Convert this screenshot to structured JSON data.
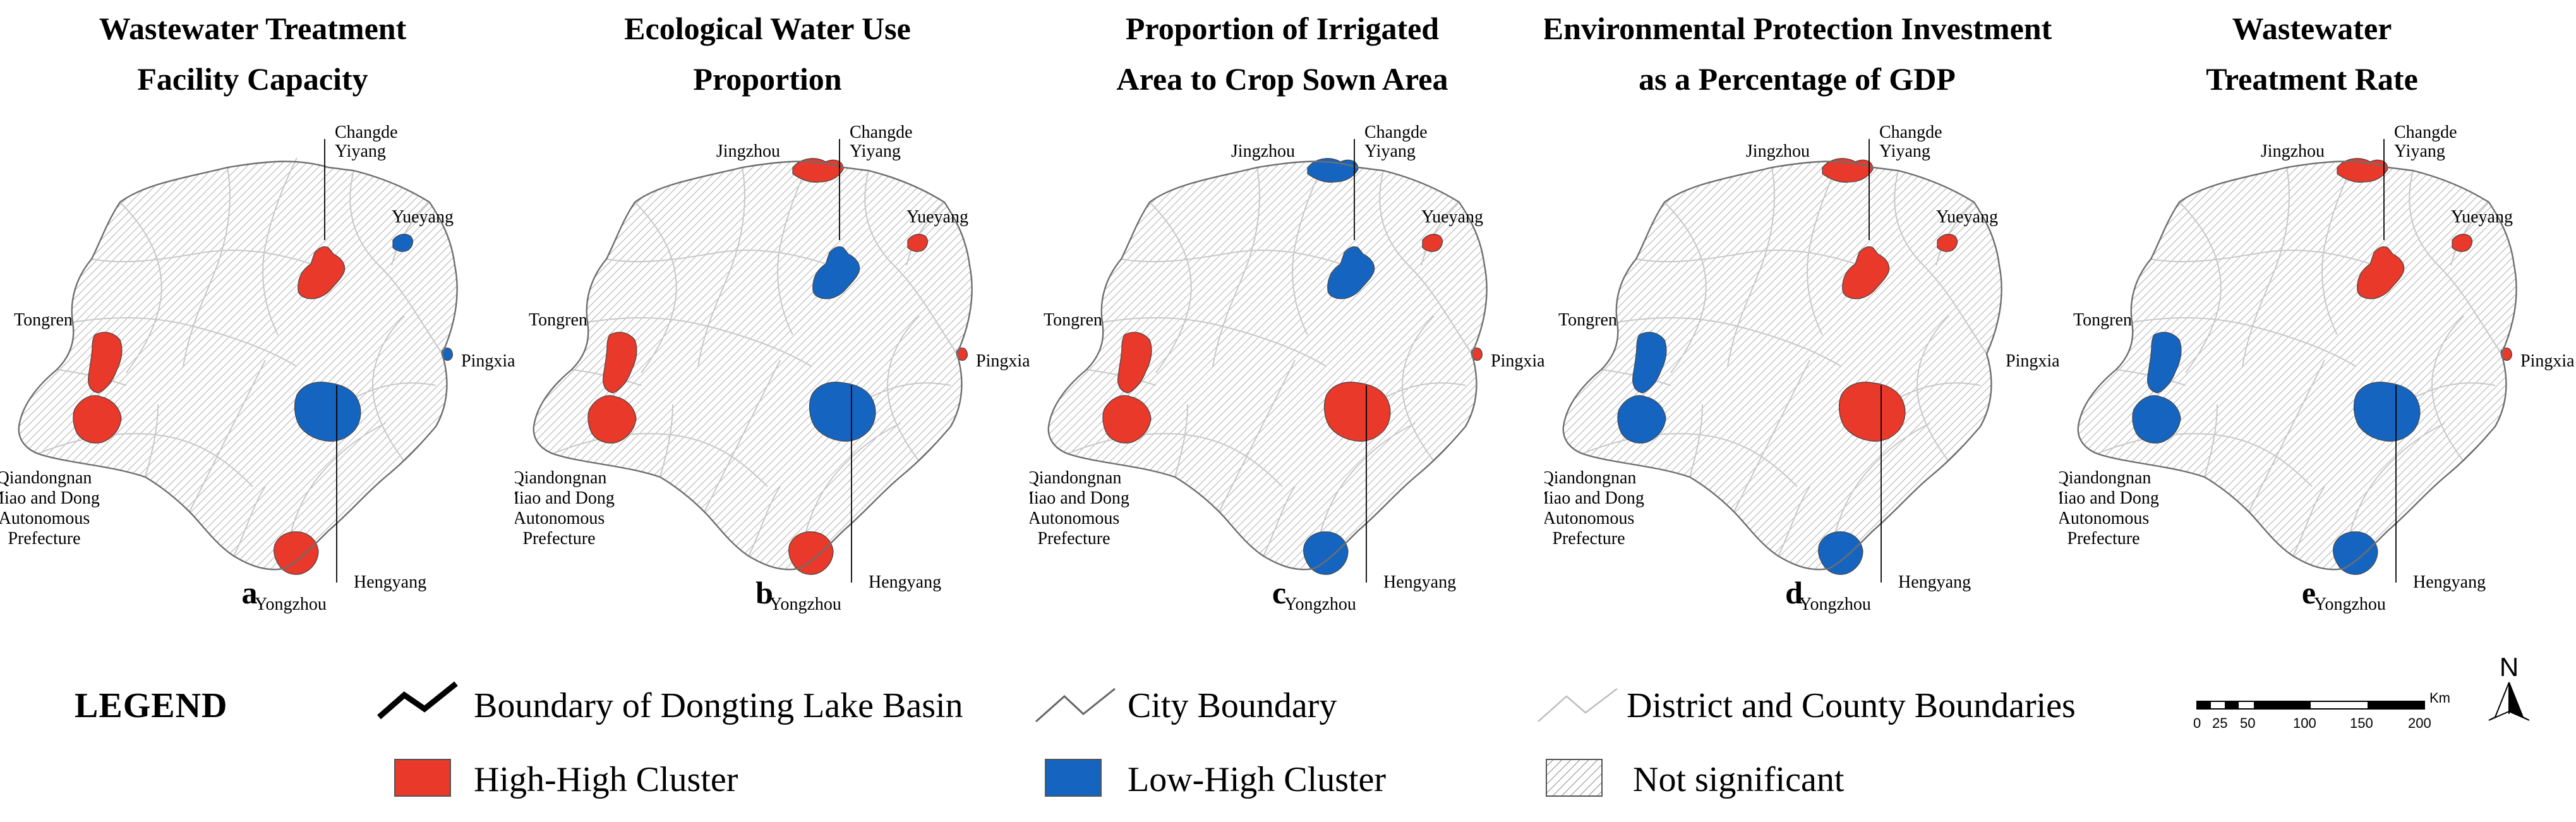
{
  "panels": [
    {
      "id": "a",
      "title_lines": [
        "Wastewater Treatment",
        "Facility Capacity"
      ],
      "label": "a",
      "regions": {
        "jingzhou": "none",
        "changde_yiyang": "red",
        "yueyang": "blue",
        "pingxiang": "blue",
        "tongren": "red",
        "qiandongnan": "red",
        "hengyang": "blue",
        "yongzhou": "red"
      },
      "city_labels": {
        "changde": "Changde",
        "yiyang": "Yiyang",
        "yueyang": "Yueyang",
        "pingxiang": "Pingxiang",
        "tongren": "Tongren",
        "qiandongnan": [
          "Qiandongnan",
          "Miao and Dong",
          "Autonomous",
          "Prefecture"
        ],
        "hengyang": "Hengyang",
        "yongzhou": "Yongzhou"
      }
    },
    {
      "id": "b",
      "title_lines": [
        "Ecological Water Use",
        "Proportion"
      ],
      "label": "b",
      "regions": {
        "jingzhou": "red",
        "changde_yiyang": "blue",
        "yueyang": "red",
        "pingxiang": "red",
        "tongren": "red",
        "qiandongnan": "red",
        "hengyang": "blue",
        "yongzhou": "red"
      },
      "city_labels": {
        "jingzhou": "Jingzhou",
        "changde": "Changde",
        "yiyang": "Yiyang",
        "yueyang": "Yueyang",
        "pingxiang": "Pingxiang",
        "tongren": "Tongren",
        "qiandongnan": [
          "Qiandongnan",
          "Miao and Dong",
          "Autonomous",
          "Prefecture"
        ],
        "hengyang": "Hengyang",
        "yongzhou": "Yongzhou"
      }
    },
    {
      "id": "c",
      "title_lines": [
        "Proportion of Irrigated",
        "Area to Crop Sown Area"
      ],
      "label": "c",
      "regions": {
        "jingzhou": "blue",
        "changde_yiyang": "blue",
        "yueyang": "red",
        "pingxiang": "red",
        "tongren": "red",
        "qiandongnan": "red",
        "hengyang": "red",
        "yongzhou": "blue"
      },
      "city_labels": {
        "jingzhou": "Jingzhou",
        "changde": "Changde",
        "yiyang": "Yiyang",
        "yueyang": "Yueyang",
        "pingxiang": "Pingxiang",
        "tongren": "Tongren",
        "qiandongnan": [
          "Qiandongnan",
          "Miao and Dong",
          "Autonomous",
          "Prefecture"
        ],
        "hengyang": "Hengyang",
        "yongzhou": "Yongzhou"
      }
    },
    {
      "id": "d",
      "title_lines": [
        "Environmental Protection Investment",
        "as a Percentage of GDP"
      ],
      "label": "d",
      "regions": {
        "jingzhou": "red",
        "changde_yiyang": "red",
        "yueyang": "red",
        "pingxiang": "none",
        "tongren": "blue",
        "qiandongnan": "blue",
        "hengyang": "red",
        "yongzhou": "blue"
      },
      "city_labels": {
        "jingzhou": "Jingzhou",
        "changde": "Changde",
        "yiyang": "Yiyang",
        "yueyang": "Yueyang",
        "pingxiang": "Pingxiang",
        "tongren": "Tongren",
        "qiandongnan": [
          "Qiandongnan",
          "Miao and Dong",
          "Autonomous",
          "Prefecture"
        ],
        "hengyang": "Hengyang",
        "yongzhou": "Yongzhou"
      }
    },
    {
      "id": "e",
      "title_lines": [
        "Wastewater",
        "Treatment Rate"
      ],
      "label": "e",
      "regions": {
        "jingzhou": "red",
        "changde_yiyang": "red",
        "yueyang": "red",
        "pingxiang": "red",
        "tongren": "blue",
        "qiandongnan": "blue",
        "hengyang": "blue",
        "yongzhou": "blue"
      },
      "city_labels": {
        "jingzhou": "Jingzhou",
        "changde": "Changde",
        "yiyang": "Yiyang",
        "yueyang": "Yueyang",
        "pingxiang": "Pingxiang",
        "tongren": "Tongren",
        "qiandongnan": [
          "Qiandongnan",
          "Miao and Dong",
          "Autonomous",
          "Prefecture"
        ],
        "hengyang": "Hengyang",
        "yongzhou": "Yongzhou"
      }
    }
  ],
  "legend": {
    "heading": "LEGEND",
    "basin_boundary": "Boundary of Dongting Lake Basin",
    "city_boundary": "City Boundary",
    "district_boundaries": "District and County Boundaries",
    "high_high": "High-High Cluster",
    "low_high": "Low-High Cluster",
    "not_significant": "Not significant"
  },
  "scale_bar": {
    "ticks": [
      "0",
      "25",
      "50",
      "100",
      "150",
      "200"
    ],
    "unit": "Km"
  },
  "north_arrow": {
    "label": "N"
  },
  "colors": {
    "high_high": "#e8392a",
    "low_high": "#1565c0",
    "hatch": "#9a9a9a",
    "boundary": "#000000"
  },
  "icons": {
    "north_arrow": "north-arrow-icon",
    "scale_bar": "scale-bar-icon"
  }
}
